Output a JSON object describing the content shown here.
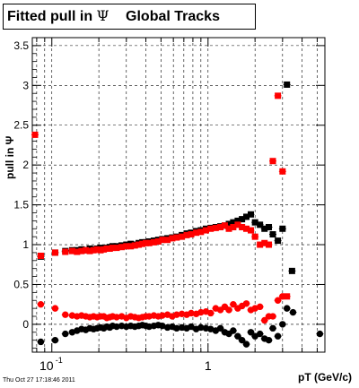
{
  "chart_data": {
    "type": "scatter",
    "title": "Fitted pull in Ψ   Global Tracks",
    "xlabel": "pT (GeV/c)",
    "ylabel": "pull in Ψ",
    "xscale": "log",
    "xlim": [
      0.075,
      5.6
    ],
    "ylim": [
      -0.35,
      3.6
    ],
    "x_ticks": [
      {
        "value": 0.1,
        "label": "10",
        "exp": "-1"
      },
      {
        "value": 1,
        "label": "1",
        "exp": ""
      }
    ],
    "y_ticks": [
      0,
      0.5,
      1,
      1.5,
      2,
      2.5,
      3,
      3.5
    ],
    "y_tick_labels": [
      "0",
      "0.5",
      "1",
      "1.5",
      "2",
      "2.5",
      "3",
      "3.5"
    ],
    "grid": true,
    "series": [
      {
        "color": "#000000",
        "marker": "square",
        "x": [
          0.085,
          0.105,
          0.122,
          0.135,
          0.145,
          0.155,
          0.165,
          0.175,
          0.185,
          0.195,
          0.205,
          0.215,
          0.225,
          0.235,
          0.245,
          0.26,
          0.28,
          0.3,
          0.32,
          0.34,
          0.36,
          0.38,
          0.4,
          0.42,
          0.45,
          0.48,
          0.51,
          0.55,
          0.59,
          0.63,
          0.68,
          0.73,
          0.78,
          0.84,
          0.9,
          0.97,
          1.04,
          1.12,
          1.2,
          1.28,
          1.36,
          1.45,
          1.55,
          1.65,
          1.76,
          1.88,
          2.0,
          2.15,
          2.3,
          2.45,
          2.6,
          2.8,
          3.0,
          3.2,
          3.45
        ],
        "y": [
          0.85,
          0.9,
          0.92,
          0.93,
          0.93,
          0.94,
          0.93,
          0.95,
          0.94,
          0.95,
          0.96,
          0.95,
          0.96,
          0.97,
          0.98,
          0.98,
          0.99,
          1.0,
          1.01,
          1.0,
          1.02,
          1.03,
          1.03,
          1.04,
          1.05,
          1.06,
          1.07,
          1.08,
          1.09,
          1.1,
          1.12,
          1.14,
          1.15,
          1.17,
          1.18,
          1.2,
          1.21,
          1.22,
          1.23,
          1.24,
          1.26,
          1.28,
          1.3,
          1.32,
          1.35,
          1.38,
          1.28,
          1.25,
          1.2,
          1.22,
          1.13,
          1.05,
          1.2,
          3.01,
          0.67
        ]
      },
      {
        "color": "#ff0000",
        "marker": "square",
        "x": [
          0.078,
          0.085,
          0.105,
          0.122,
          0.135,
          0.145,
          0.155,
          0.165,
          0.175,
          0.185,
          0.195,
          0.205,
          0.215,
          0.225,
          0.235,
          0.245,
          0.26,
          0.28,
          0.3,
          0.32,
          0.34,
          0.36,
          0.38,
          0.4,
          0.42,
          0.45,
          0.48,
          0.51,
          0.55,
          0.59,
          0.63,
          0.68,
          0.73,
          0.78,
          0.84,
          0.9,
          0.97,
          1.04,
          1.12,
          1.2,
          1.28,
          1.36,
          1.45,
          1.55,
          1.65,
          1.76,
          1.88,
          2.0,
          2.15,
          2.3,
          2.45,
          2.6,
          2.8,
          3.0,
          3.2
        ],
        "y": [
          2.38,
          0.86,
          0.9,
          0.91,
          0.92,
          0.91,
          0.92,
          0.93,
          0.92,
          0.93,
          0.94,
          0.93,
          0.94,
          0.95,
          0.95,
          0.96,
          0.96,
          0.97,
          0.98,
          0.98,
          0.99,
          1.0,
          1.01,
          1.02,
          1.02,
          1.03,
          1.04,
          1.06,
          1.06,
          1.08,
          1.09,
          1.1,
          1.12,
          1.13,
          1.15,
          1.16,
          1.18,
          1.2,
          1.21,
          1.22,
          1.24,
          1.2,
          1.22,
          1.25,
          1.22,
          1.2,
          1.18,
          1.1,
          1.0,
          1.02,
          1.0,
          2.05,
          2.87,
          1.92,
          0.35
        ]
      },
      {
        "color": "#ff0000",
        "marker": "circle",
        "x": [
          0.085,
          0.105,
          0.122,
          0.135,
          0.145,
          0.155,
          0.165,
          0.175,
          0.185,
          0.195,
          0.205,
          0.215,
          0.225,
          0.235,
          0.245,
          0.26,
          0.28,
          0.3,
          0.32,
          0.34,
          0.36,
          0.38,
          0.4,
          0.42,
          0.45,
          0.48,
          0.51,
          0.55,
          0.59,
          0.63,
          0.68,
          0.73,
          0.78,
          0.84,
          0.9,
          0.97,
          1.04,
          1.12,
          1.2,
          1.28,
          1.36,
          1.45,
          1.55,
          1.65,
          1.76,
          1.88,
          2.0,
          2.15,
          2.3,
          2.45,
          2.6,
          2.8,
          3.0
        ],
        "y": [
          0.25,
          0.2,
          0.12,
          0.11,
          0.1,
          0.11,
          0.1,
          0.09,
          0.1,
          0.09,
          0.1,
          0.1,
          0.08,
          0.09,
          0.1,
          0.09,
          0.1,
          0.08,
          0.1,
          0.09,
          0.08,
          0.09,
          0.1,
          0.1,
          0.11,
          0.1,
          0.11,
          0.12,
          0.1,
          0.12,
          0.13,
          0.12,
          0.14,
          0.13,
          0.15,
          0.16,
          0.14,
          0.2,
          0.18,
          0.22,
          0.18,
          0.25,
          0.2,
          0.23,
          0.26,
          0.18,
          0.2,
          0.22,
          0.05,
          0.1,
          0.1,
          0.3,
          0.35
        ]
      },
      {
        "color": "#000000",
        "marker": "circle",
        "x": [
          0.085,
          0.105,
          0.122,
          0.135,
          0.145,
          0.155,
          0.165,
          0.175,
          0.185,
          0.195,
          0.205,
          0.215,
          0.225,
          0.235,
          0.245,
          0.26,
          0.28,
          0.3,
          0.32,
          0.34,
          0.36,
          0.38,
          0.4,
          0.42,
          0.45,
          0.48,
          0.51,
          0.55,
          0.59,
          0.63,
          0.68,
          0.73,
          0.78,
          0.84,
          0.9,
          0.97,
          1.04,
          1.12,
          1.2,
          1.28,
          1.36,
          1.45,
          1.55,
          1.65,
          1.76,
          1.88,
          2.0,
          2.15,
          2.3,
          2.45,
          2.6,
          2.8,
          3.0,
          3.2,
          3.5,
          5.2
        ],
        "y": [
          -0.22,
          -0.2,
          -0.12,
          -0.1,
          -0.08,
          -0.06,
          -0.07,
          -0.05,
          -0.06,
          -0.05,
          -0.04,
          -0.05,
          -0.03,
          -0.04,
          -0.02,
          -0.03,
          -0.02,
          -0.03,
          -0.02,
          -0.03,
          -0.02,
          -0.01,
          -0.02,
          -0.03,
          -0.02,
          -0.01,
          -0.02,
          -0.04,
          -0.03,
          -0.05,
          -0.04,
          -0.05,
          -0.03,
          -0.06,
          -0.04,
          -0.05,
          -0.06,
          -0.08,
          -0.05,
          -0.1,
          -0.12,
          -0.08,
          -0.15,
          -0.2,
          -0.25,
          -0.1,
          -0.15,
          -0.12,
          -0.18,
          -0.2,
          -0.05,
          -0.15,
          0.0,
          0.2,
          0.15,
          -0.12
        ]
      }
    ]
  },
  "title": {
    "prefix": "Fitted pull in ",
    "psi": "Ψ",
    "suffix": "Global Tracks"
  },
  "axes": {
    "ylabel": "pull in Ψ",
    "xlabel": "pT (GeV/c)"
  },
  "footer": {
    "timestamp": "Thu Oct 27 17:18:46 2011"
  }
}
